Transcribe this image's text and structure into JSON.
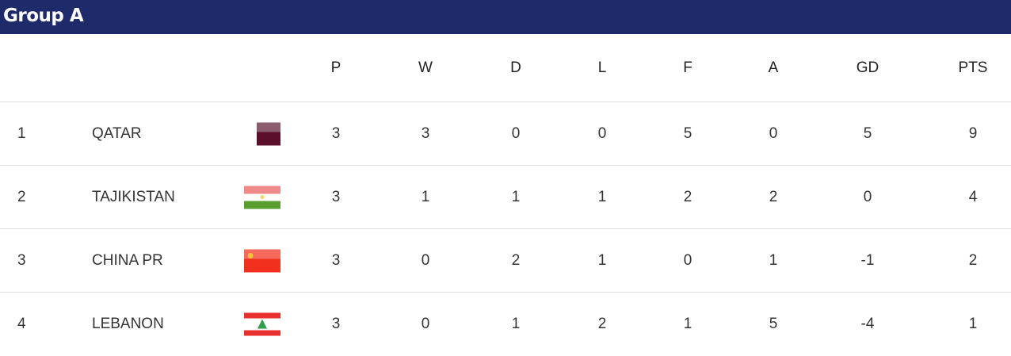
{
  "group_title": "Group A",
  "columns": [
    "P",
    "W",
    "D",
    "L",
    "F",
    "A",
    "GD",
    "PTS"
  ],
  "rows": [
    {
      "rank": "1",
      "team": "QATAR",
      "flag": "qatar-flag",
      "stats": [
        "3",
        "3",
        "0",
        "0",
        "5",
        "0",
        "5",
        "9"
      ]
    },
    {
      "rank": "2",
      "team": "TAJIKISTAN",
      "flag": "tajikistan-flag",
      "stats": [
        "3",
        "1",
        "1",
        "1",
        "2",
        "2",
        "0",
        "4"
      ]
    },
    {
      "rank": "3",
      "team": "CHINA PR",
      "flag": "china-flag",
      "stats": [
        "3",
        "0",
        "2",
        "1",
        "0",
        "1",
        "-1",
        "2"
      ]
    },
    {
      "rank": "4",
      "team": "LEBANON",
      "flag": "lebanon-flag",
      "stats": [
        "3",
        "0",
        "1",
        "2",
        "1",
        "5",
        "-4",
        "1"
      ]
    }
  ],
  "colors": {
    "header_bg": "#1f2a6b"
  }
}
